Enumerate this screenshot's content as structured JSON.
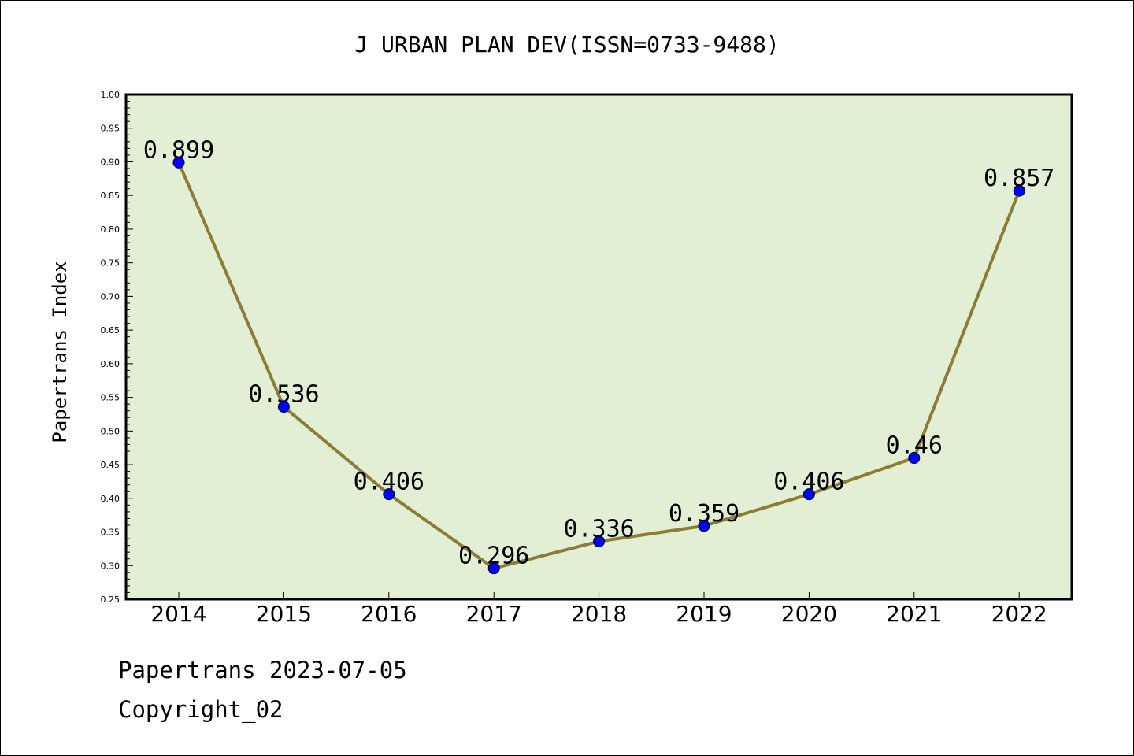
{
  "chart_data": {
    "type": "line",
    "title": "J URBAN PLAN DEV(ISSN=0733-9488)",
    "xlabel": "",
    "ylabel": "Papertrans Index",
    "categories": [
      "2014",
      "2015",
      "2016",
      "2017",
      "2018",
      "2019",
      "2020",
      "2021",
      "2022"
    ],
    "values": [
      0.899,
      0.536,
      0.406,
      0.296,
      0.336,
      0.359,
      0.406,
      0.46,
      0.857
    ],
    "data_labels": [
      "0.899",
      "0.536",
      "0.406",
      "0.296",
      "0.336",
      "0.359",
      "0.406",
      "0.46",
      "0.857"
    ],
    "ylim": [
      0.25,
      1.0
    ],
    "yticks": [
      "0.25",
      "0.30",
      "0.35",
      "0.40",
      "0.45",
      "0.50",
      "0.55",
      "0.60",
      "0.65",
      "0.70",
      "0.75",
      "0.80",
      "0.85",
      "0.90",
      "0.95",
      "1.00"
    ],
    "grid": false,
    "colors": {
      "plot_background": "#e2efd4",
      "line": "#8b7d37",
      "marker": "#0000ff"
    }
  },
  "footer": {
    "line1": "Papertrans 2023-07-05",
    "line2": "Copyright_02"
  }
}
